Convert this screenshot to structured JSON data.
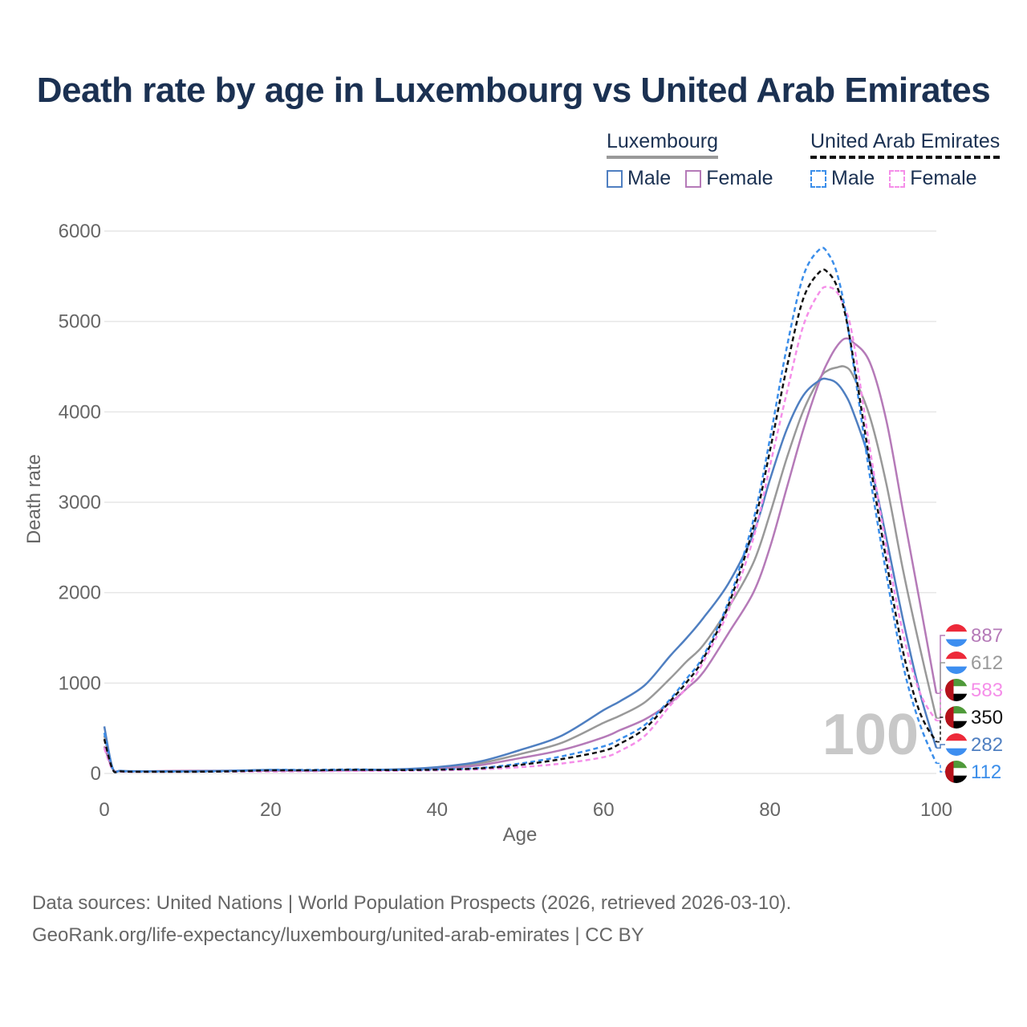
{
  "title": "Death rate by age in Luxembourg vs United Arab Emirates",
  "legend": {
    "lux": {
      "country": "Luxembourg",
      "male": "Male",
      "female": "Female"
    },
    "uae": {
      "country": "United Arab Emirates",
      "male": "Male",
      "female": "Female"
    }
  },
  "source": {
    "line1": "Data sources: United Nations | World Population Prospects (2026, retrieved 2026-03-10).",
    "line2": "GeoRank.org/life-expectancy/luxembourg/united-arab-emirates | CC BY"
  },
  "colors": {
    "lux_total": "#999999",
    "lux_male": "#4f7fc1",
    "lux_female": "#b57ab8",
    "uae_total": "#111111",
    "uae_male": "#3b8eea",
    "uae_female": "#f58ee9",
    "grid": "#e6e6e6",
    "axis_text": "#666666",
    "big_age": "#c8c8c8"
  },
  "chart_data": {
    "type": "line",
    "title": "Death rate by age in Luxembourg vs United Arab Emirates",
    "xlabel": "Age",
    "ylabel": "Death rate",
    "xlim": [
      0,
      100
    ],
    "ylim": [
      0,
      6000
    ],
    "xticks": [
      0,
      20,
      40,
      60,
      80,
      100
    ],
    "yticks": [
      0,
      1000,
      2000,
      3000,
      4000,
      5000,
      6000
    ],
    "current_age_label": "100",
    "x": [
      0,
      1,
      2,
      5,
      10,
      15,
      20,
      25,
      30,
      35,
      40,
      45,
      50,
      55,
      60,
      62,
      65,
      68,
      70,
      72,
      75,
      78,
      80,
      82,
      84,
      86,
      87,
      88,
      89,
      90,
      92,
      94,
      96,
      98,
      100
    ],
    "series": [
      {
        "name": "Luxembourg Male",
        "key": "lux_male",
        "dashed": false,
        "values": [
          520,
          60,
          30,
          25,
          25,
          30,
          40,
          35,
          40,
          45,
          70,
          130,
          260,
          420,
          700,
          800,
          980,
          1300,
          1500,
          1720,
          2100,
          2650,
          3250,
          3800,
          4180,
          4350,
          4360,
          4320,
          4200,
          4000,
          3450,
          2600,
          1700,
          900,
          282
        ]
      },
      {
        "name": "Luxembourg Female",
        "key": "lux_female",
        "dashed": false,
        "values": [
          300,
          50,
          25,
          25,
          30,
          30,
          30,
          30,
          35,
          40,
          55,
          90,
          170,
          260,
          400,
          480,
          600,
          780,
          940,
          1120,
          1550,
          2000,
          2500,
          3150,
          3800,
          4350,
          4560,
          4720,
          4810,
          4770,
          4550,
          3900,
          2900,
          1900,
          887
        ]
      },
      {
        "name": "Luxembourg Total",
        "key": "lux_total",
        "dashed": false,
        "values": [
          420,
          55,
          28,
          25,
          27,
          30,
          35,
          33,
          38,
          42,
          62,
          110,
          215,
          340,
          560,
          640,
          790,
          1050,
          1240,
          1420,
          1830,
          2330,
          2870,
          3480,
          4010,
          4370,
          4460,
          4490,
          4500,
          4400,
          3950,
          3200,
          2250,
          1400,
          612
        ]
      },
      {
        "name": "United Arab Emirates Male",
        "key": "uae_male",
        "dashed": true,
        "values": [
          450,
          50,
          25,
          20,
          20,
          25,
          40,
          40,
          45,
          40,
          45,
          60,
          110,
          190,
          300,
          380,
          540,
          820,
          1050,
          1300,
          1900,
          2800,
          3700,
          4700,
          5500,
          5800,
          5750,
          5550,
          5150,
          4550,
          3300,
          2200,
          1200,
          550,
          112
        ]
      },
      {
        "name": "United Arab Emirates Female",
        "key": "uae_female",
        "dashed": true,
        "values": [
          280,
          40,
          20,
          18,
          18,
          20,
          22,
          25,
          28,
          30,
          35,
          45,
          70,
          110,
          180,
          250,
          420,
          750,
          950,
          1230,
          1800,
          2600,
          3400,
          4200,
          4950,
          5330,
          5380,
          5330,
          5150,
          4800,
          3600,
          2500,
          1550,
          900,
          583
        ]
      },
      {
        "name": "United Arab Emirates Total",
        "key": "uae_total",
        "dashed": true,
        "values": [
          380,
          45,
          23,
          19,
          19,
          23,
          34,
          35,
          40,
          37,
          42,
          55,
          95,
          160,
          250,
          330,
          500,
          800,
          1010,
          1270,
          1860,
          2720,
          3570,
          4480,
          5250,
          5550,
          5540,
          5400,
          5100,
          4600,
          3450,
          2350,
          1350,
          680,
          350
        ]
      }
    ],
    "end_labels": [
      {
        "value": "887",
        "key": "lux_female",
        "flag": "lux"
      },
      {
        "value": "612",
        "key": "lux_total",
        "flag": "lux"
      },
      {
        "value": "583",
        "key": "uae_female",
        "flag": "uae"
      },
      {
        "value": "350",
        "key": "uae_total",
        "flag": "uae"
      },
      {
        "value": "282",
        "key": "lux_male",
        "flag": "lux"
      },
      {
        "value": "112",
        "key": "uae_male",
        "flag": "uae"
      }
    ]
  }
}
